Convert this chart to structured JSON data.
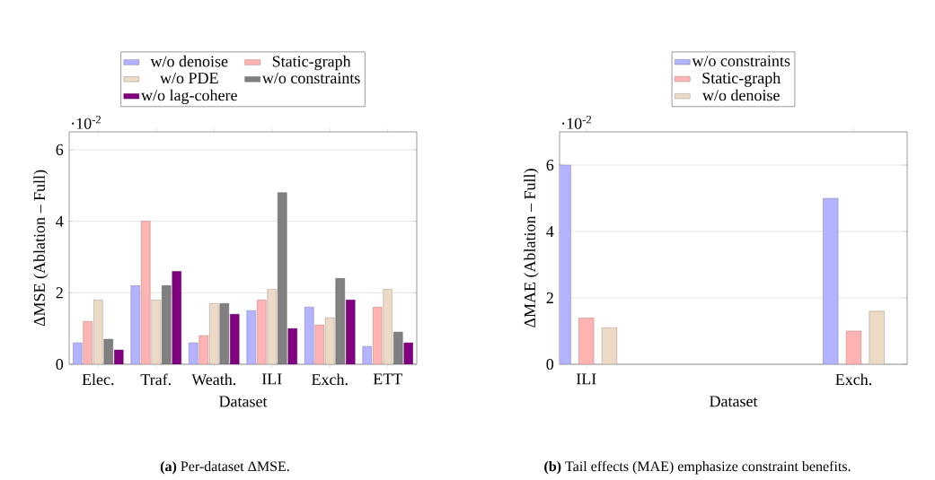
{
  "chart_data": [
    {
      "type": "bar",
      "xlabel": "Dataset",
      "ylabel": "ΔMSE (Ablation – Full)",
      "categories": [
        "Elec.",
        "Traf.",
        "Weath.",
        "ILI",
        "Exch.",
        "ETT"
      ],
      "series": [
        {
          "name": "w/o denoise",
          "color": "#b3b3ff",
          "values": [
            0.6,
            2.2,
            0.6,
            1.5,
            1.6,
            0.5
          ]
        },
        {
          "name": "Static-graph",
          "color": "#ffb3b3",
          "values": [
            1.2,
            4.0,
            0.8,
            1.8,
            1.1,
            1.6
          ]
        },
        {
          "name": "w/o PDE",
          "color": "#ecd9c6",
          "values": [
            1.8,
            1.8,
            1.7,
            2.1,
            1.3,
            2.1
          ]
        },
        {
          "name": "w/o constraints",
          "color": "#808080",
          "values": [
            0.7,
            2.2,
            1.7,
            4.8,
            2.4,
            0.9
          ]
        },
        {
          "name": "w/o lag-cohere",
          "color": "#800080",
          "values": [
            0.4,
            2.6,
            1.4,
            1.0,
            1.8,
            0.6
          ]
        }
      ],
      "ylim": [
        0,
        6.5
      ],
      "yticks": [
        0,
        2,
        4,
        6
      ],
      "grid": "y",
      "legend": "top",
      "annotations": [
        "·10$^{-2}$",
        "**(a)** Per-dataset ΔMSE."
      ]
    },
    {
      "type": "bar",
      "xlabel": "Dataset",
      "ylabel": "ΔMAE (Ablation – Full)",
      "categories": [
        "ILI",
        "Exch."
      ],
      "series": [
        {
          "name": "w/o constraints",
          "color": "#b3b3ff",
          "values": [
            6.0,
            5.0
          ]
        },
        {
          "name": "Static-graph",
          "color": "#ffb3b3",
          "values": [
            1.4,
            1.0
          ]
        },
        {
          "name": "w/o denoise",
          "color": "#ecd9c6",
          "values": [
            1.1,
            1.6
          ]
        }
      ],
      "ylim": [
        0,
        7
      ],
      "yticks": [
        0,
        2,
        4,
        6
      ],
      "grid": "y",
      "legend": "top",
      "annotations": [
        "·10$^{-2}$",
        "**(b)** Tail effects (MAE) emphasize constraint benefits."
      ]
    }
  ]
}
